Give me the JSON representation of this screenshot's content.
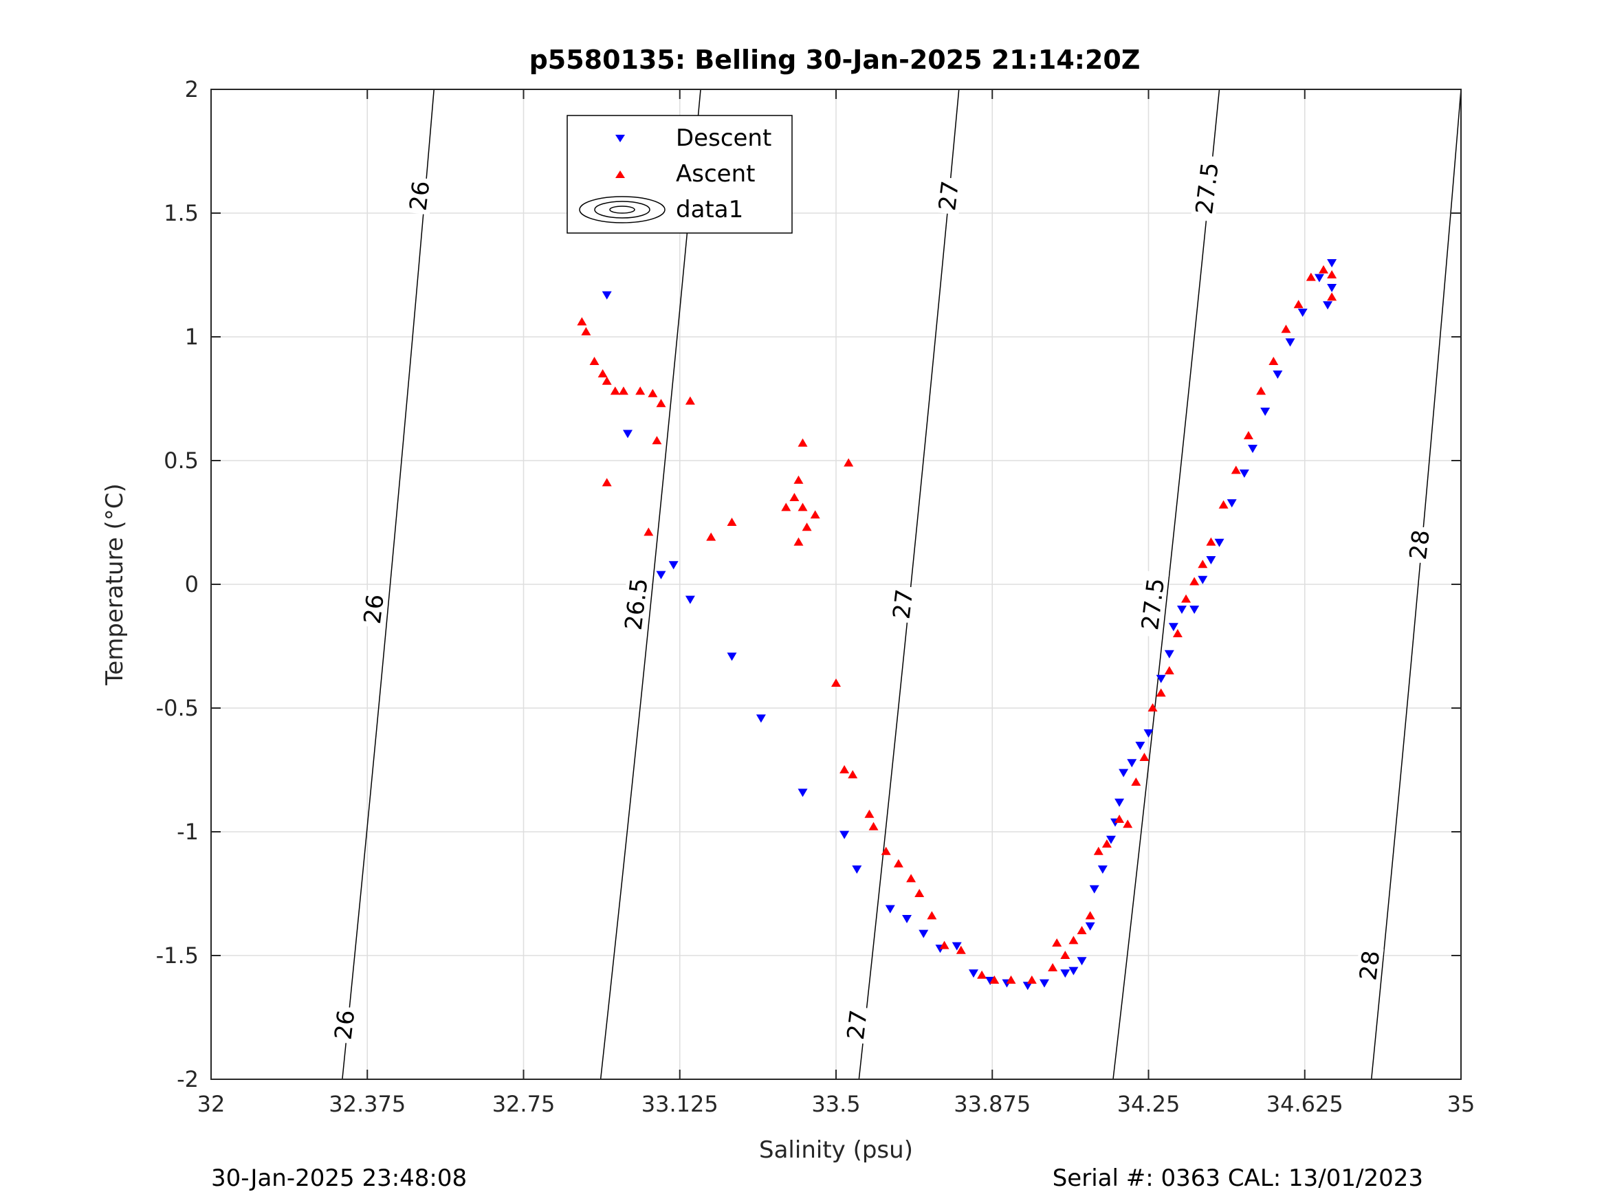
{
  "chart_data": {
    "type": "scatter",
    "title": "p5580135: Belling 30-Jan-2025 21:14:20Z",
    "xlabel": "Salinity (psu)",
    "ylabel": "Temperature (°C)",
    "xlim": [
      32,
      35
    ],
    "ylim": [
      -2,
      2
    ],
    "x_ticks": [
      "32",
      "32.375",
      "32.75",
      "33.125",
      "33.5",
      "33.875",
      "34.25",
      "34.625",
      "35"
    ],
    "y_ticks": [
      "2",
      "1.5",
      "1",
      "0.5",
      "0",
      "-0.5",
      "-1",
      "-1.5",
      "-2"
    ],
    "grid": true,
    "legend_position": "top-center",
    "legend": [
      "Descent",
      "Ascent",
      "data1"
    ],
    "series": [
      {
        "name": "Descent",
        "marker": "triangle-down",
        "color": "#0000ff",
        "points": [
          [
            32.95,
            1.17
          ],
          [
            33.0,
            0.61
          ],
          [
            33.08,
            0.04
          ],
          [
            33.11,
            0.08
          ],
          [
            33.15,
            -0.06
          ],
          [
            33.25,
            -0.29
          ],
          [
            33.32,
            -0.54
          ],
          [
            33.42,
            -0.84
          ],
          [
            33.52,
            -1.01
          ],
          [
            33.55,
            -1.15
          ],
          [
            33.63,
            -1.31
          ],
          [
            33.67,
            -1.35
          ],
          [
            33.71,
            -1.41
          ],
          [
            33.75,
            -1.47
          ],
          [
            33.79,
            -1.46
          ],
          [
            33.83,
            -1.57
          ],
          [
            33.87,
            -1.6
          ],
          [
            33.91,
            -1.61
          ],
          [
            33.96,
            -1.62
          ],
          [
            34.0,
            -1.61
          ],
          [
            34.05,
            -1.57
          ],
          [
            34.07,
            -1.56
          ],
          [
            34.09,
            -1.52
          ],
          [
            34.11,
            -1.38
          ],
          [
            34.12,
            -1.23
          ],
          [
            34.14,
            -1.15
          ],
          [
            34.16,
            -1.03
          ],
          [
            34.17,
            -0.96
          ],
          [
            34.18,
            -0.88
          ],
          [
            34.19,
            -0.76
          ],
          [
            34.21,
            -0.72
          ],
          [
            34.23,
            -0.65
          ],
          [
            34.25,
            -0.6
          ],
          [
            34.28,
            -0.38
          ],
          [
            34.3,
            -0.28
          ],
          [
            34.31,
            -0.17
          ],
          [
            34.33,
            -0.1
          ],
          [
            34.36,
            -0.1
          ],
          [
            34.38,
            0.02
          ],
          [
            34.4,
            0.1
          ],
          [
            34.42,
            0.17
          ],
          [
            34.45,
            0.33
          ],
          [
            34.48,
            0.45
          ],
          [
            34.5,
            0.55
          ],
          [
            34.53,
            0.7
          ],
          [
            34.56,
            0.85
          ],
          [
            34.59,
            0.98
          ],
          [
            34.62,
            1.1
          ],
          [
            34.66,
            1.24
          ],
          [
            34.69,
            1.3
          ],
          [
            34.69,
            1.2
          ],
          [
            34.68,
            1.13
          ]
        ]
      },
      {
        "name": "Ascent",
        "marker": "triangle-up",
        "color": "#ff0000",
        "points": [
          [
            32.89,
            1.06
          ],
          [
            32.9,
            1.02
          ],
          [
            32.92,
            0.9
          ],
          [
            32.94,
            0.85
          ],
          [
            32.95,
            0.82
          ],
          [
            32.97,
            0.78
          ],
          [
            32.99,
            0.78
          ],
          [
            33.03,
            0.78
          ],
          [
            33.06,
            0.77
          ],
          [
            33.08,
            0.73
          ],
          [
            33.15,
            0.74
          ],
          [
            33.07,
            0.58
          ],
          [
            32.95,
            0.41
          ],
          [
            33.05,
            0.21
          ],
          [
            33.2,
            0.19
          ],
          [
            33.25,
            0.25
          ],
          [
            33.38,
            0.31
          ],
          [
            33.4,
            0.35
          ],
          [
            33.41,
            0.42
          ],
          [
            33.42,
            0.57
          ],
          [
            33.42,
            0.31
          ],
          [
            33.43,
            0.23
          ],
          [
            33.45,
            0.28
          ],
          [
            33.41,
            0.17
          ],
          [
            33.53,
            0.49
          ],
          [
            33.5,
            -0.4
          ],
          [
            33.52,
            -0.75
          ],
          [
            33.54,
            -0.77
          ],
          [
            33.58,
            -0.93
          ],
          [
            33.59,
            -0.98
          ],
          [
            33.62,
            -1.08
          ],
          [
            33.65,
            -1.13
          ],
          [
            33.68,
            -1.19
          ],
          [
            33.7,
            -1.25
          ],
          [
            33.73,
            -1.34
          ],
          [
            33.76,
            -1.46
          ],
          [
            33.8,
            -1.48
          ],
          [
            33.85,
            -1.58
          ],
          [
            33.88,
            -1.6
          ],
          [
            33.92,
            -1.6
          ],
          [
            33.97,
            -1.6
          ],
          [
            34.02,
            -1.55
          ],
          [
            34.03,
            -1.45
          ],
          [
            34.05,
            -1.5
          ],
          [
            34.07,
            -1.44
          ],
          [
            34.09,
            -1.4
          ],
          [
            34.11,
            -1.34
          ],
          [
            34.13,
            -1.08
          ],
          [
            34.15,
            -1.05
          ],
          [
            34.18,
            -0.95
          ],
          [
            34.2,
            -0.97
          ],
          [
            34.22,
            -0.8
          ],
          [
            34.24,
            -0.7
          ],
          [
            34.26,
            -0.5
          ],
          [
            34.28,
            -0.44
          ],
          [
            34.3,
            -0.35
          ],
          [
            34.32,
            -0.2
          ],
          [
            34.34,
            -0.06
          ],
          [
            34.36,
            0.01
          ],
          [
            34.38,
            0.08
          ],
          [
            34.4,
            0.17
          ],
          [
            34.43,
            0.32
          ],
          [
            34.46,
            0.46
          ],
          [
            34.49,
            0.6
          ],
          [
            34.52,
            0.78
          ],
          [
            34.55,
            0.9
          ],
          [
            34.58,
            1.03
          ],
          [
            34.61,
            1.13
          ],
          [
            34.64,
            1.24
          ],
          [
            34.67,
            1.27
          ],
          [
            34.69,
            1.25
          ],
          [
            34.69,
            1.16
          ]
        ]
      }
    ],
    "contours": [
      {
        "label": "26",
        "x_at_ymax": 32.535,
        "x_at_ymin": 32.315
      },
      {
        "label": "26.5",
        "x_at_ymax": 33.175,
        "x_at_ymin": 32.935
      },
      {
        "label": "27",
        "x_at_ymax": 33.795,
        "x_at_ymin": 33.555
      },
      {
        "label": "27.5",
        "x_at_ymax": 34.42,
        "x_at_ymin": 34.165
      },
      {
        "label": "28",
        "x_at_ymax": 35.0,
        "x_at_ymin": 34.785
      }
    ],
    "contour_labels": [
      {
        "text": "26",
        "x": 32.5,
        "y": 1.57
      },
      {
        "text": "26",
        "x": 32.39,
        "y": -0.1
      },
      {
        "text": "26",
        "x": 32.32,
        "y": -1.78
      },
      {
        "text": "26.5",
        "x": 33.14,
        "y": 1.58
      },
      {
        "text": "26.5",
        "x": 33.02,
        "y": -0.08
      },
      {
        "text": "27",
        "x": 33.77,
        "y": 1.57
      },
      {
        "text": "27",
        "x": 33.66,
        "y": -0.08
      },
      {
        "text": "27",
        "x": 33.55,
        "y": -1.78
      },
      {
        "text": "27.5",
        "x": 34.39,
        "y": 1.6
      },
      {
        "text": "27.5",
        "x": 34.26,
        "y": -0.08
      },
      {
        "text": "28",
        "x": 34.9,
        "y": 0.16
      },
      {
        "text": "28",
        "x": 34.78,
        "y": -1.54
      }
    ]
  },
  "footer": {
    "timestamp": "30-Jan-2025 23:48:08",
    "serial": "Serial #: 0363  CAL: 13/01/2023"
  }
}
